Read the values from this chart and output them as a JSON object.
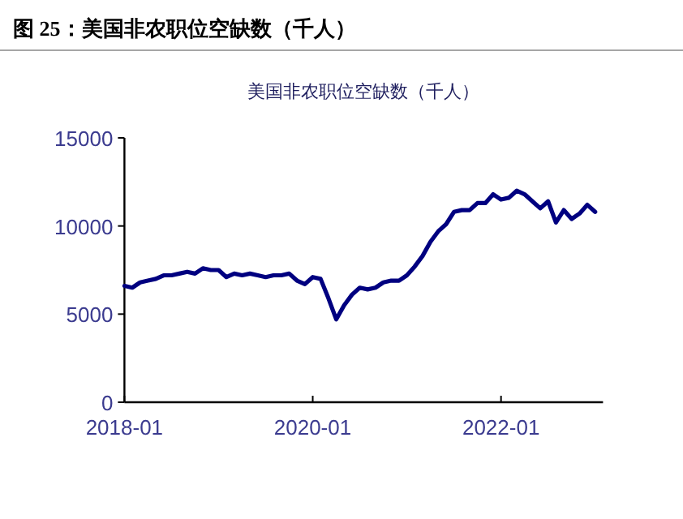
{
  "chart_data": {
    "type": "line",
    "title": "图 25：美国非农职位空缺数（千人）",
    "subtitle": "美国非农职位空缺数（千人）",
    "x": [
      "2018-01",
      "2018-02",
      "2018-03",
      "2018-04",
      "2018-05",
      "2018-06",
      "2018-07",
      "2018-08",
      "2018-09",
      "2018-10",
      "2018-11",
      "2018-12",
      "2019-01",
      "2019-02",
      "2019-03",
      "2019-04",
      "2019-05",
      "2019-06",
      "2019-07",
      "2019-08",
      "2019-09",
      "2019-10",
      "2019-11",
      "2019-12",
      "2020-01",
      "2020-02",
      "2020-03",
      "2020-04",
      "2020-05",
      "2020-06",
      "2020-07",
      "2020-08",
      "2020-09",
      "2020-10",
      "2020-11",
      "2020-12",
      "2021-01",
      "2021-02",
      "2021-03",
      "2021-04",
      "2021-05",
      "2021-06",
      "2021-07",
      "2021-08",
      "2021-09",
      "2021-10",
      "2021-11",
      "2021-12",
      "2022-01",
      "2022-02",
      "2022-03",
      "2022-04",
      "2022-05",
      "2022-06",
      "2022-07",
      "2022-08",
      "2022-09",
      "2022-10",
      "2022-11",
      "2022-12",
      "2023-01"
    ],
    "series": [
      {
        "color": "#000080",
        "values": [
          6600,
          6500,
          6800,
          6900,
          7000,
          7200,
          7200,
          7300,
          7400,
          7300,
          7600,
          7500,
          7500,
          7100,
          7300,
          7200,
          7300,
          7200,
          7100,
          7200,
          7200,
          7300,
          6900,
          6700,
          7100,
          7000,
          5900,
          4700,
          5500,
          6100,
          6500,
          6400,
          6500,
          6800,
          6900,
          6900,
          7200,
          7700,
          8300,
          9100,
          9700,
          10100,
          10800,
          10900,
          10900,
          11300,
          11300,
          11800,
          11500,
          11600,
          12000,
          11800,
          11400,
          11000,
          11400,
          10200,
          10900,
          10400,
          10700,
          11200,
          10800
        ]
      }
    ],
    "xlim": [
      "2018-01",
      "2023-02"
    ],
    "xticks": [
      "2018-01",
      "2020-01",
      "2022-01"
    ],
    "ylim": [
      0,
      15000
    ],
    "yticks": [
      0,
      5000,
      10000,
      15000
    ],
    "grid": false
  }
}
